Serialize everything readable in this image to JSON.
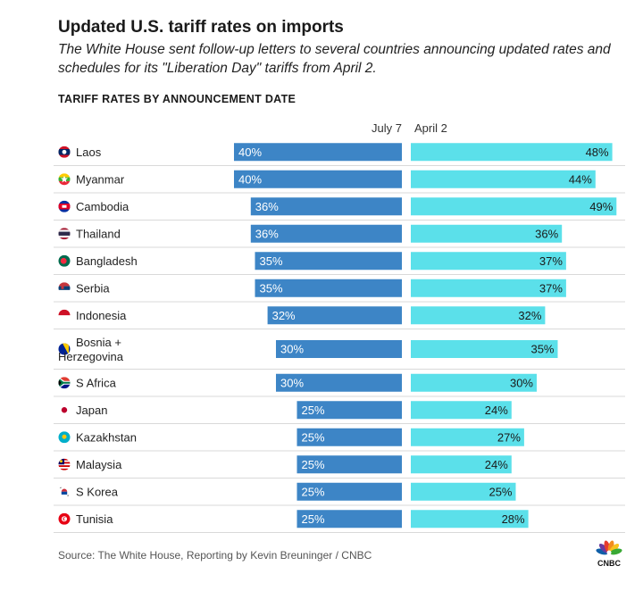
{
  "header": {
    "title": "Updated U.S. tariff rates on imports",
    "subtitle": "The White House sent follow-up letters to several countries announcing updated rates and schedules for its \"Liberation Day\" tariffs from April 2.",
    "section_label": "TARIFF RATES BY ANNOUNCEMENT DATE"
  },
  "footer": {
    "source": "Source: The White House, Reporting by Kevin Breuninger / CNBC",
    "logo_text": "CNBC"
  },
  "colors": {
    "july7": "#3d85c6",
    "april2": "#5be0ea",
    "divider": "#d9d9d9"
  },
  "chart_data": {
    "type": "bar",
    "title": "TARIFF RATES BY ANNOUNCEMENT DATE",
    "layout": "diverging-horizontal",
    "unit": "%",
    "xlim": [
      0,
      50
    ],
    "categories": [
      "Laos",
      "Myanmar",
      "Cambodia",
      "Thailand",
      "Bangladesh",
      "Serbia",
      "Indonesia",
      "Bosnia + Herzegovina",
      "S Africa",
      "Japan",
      "Kazakhstan",
      "Malaysia",
      "S Korea",
      "Tunisia"
    ],
    "category_lines": [
      [
        "Laos"
      ],
      [
        "Myanmar"
      ],
      [
        "Cambodia"
      ],
      [
        "Thailand"
      ],
      [
        "Bangladesh"
      ],
      [
        "Serbia"
      ],
      [
        "Indonesia"
      ],
      [
        "Bosnia +",
        "Herzegovina"
      ],
      [
        "S Africa"
      ],
      [
        "Japan"
      ],
      [
        "Kazakhstan"
      ],
      [
        "Malaysia"
      ],
      [
        "S Korea"
      ],
      [
        "Tunisia"
      ]
    ],
    "flag_icons": [
      "laos-flag-icon",
      "myanmar-flag-icon",
      "cambodia-flag-icon",
      "thailand-flag-icon",
      "bangladesh-flag-icon",
      "serbia-flag-icon",
      "indonesia-flag-icon",
      "bosnia-flag-icon",
      "south-africa-flag-icon",
      "japan-flag-icon",
      "kazakhstan-flag-icon",
      "malaysia-flag-icon",
      "south-korea-flag-icon",
      "tunisia-flag-icon"
    ],
    "series": [
      {
        "name": "July 7",
        "values": [
          40,
          40,
          36,
          36,
          35,
          35,
          32,
          30,
          30,
          25,
          25,
          25,
          25,
          25
        ]
      },
      {
        "name": "April 2",
        "values": [
          48,
          44,
          49,
          36,
          37,
          37,
          32,
          35,
          30,
          24,
          27,
          24,
          25,
          28
        ]
      }
    ]
  }
}
